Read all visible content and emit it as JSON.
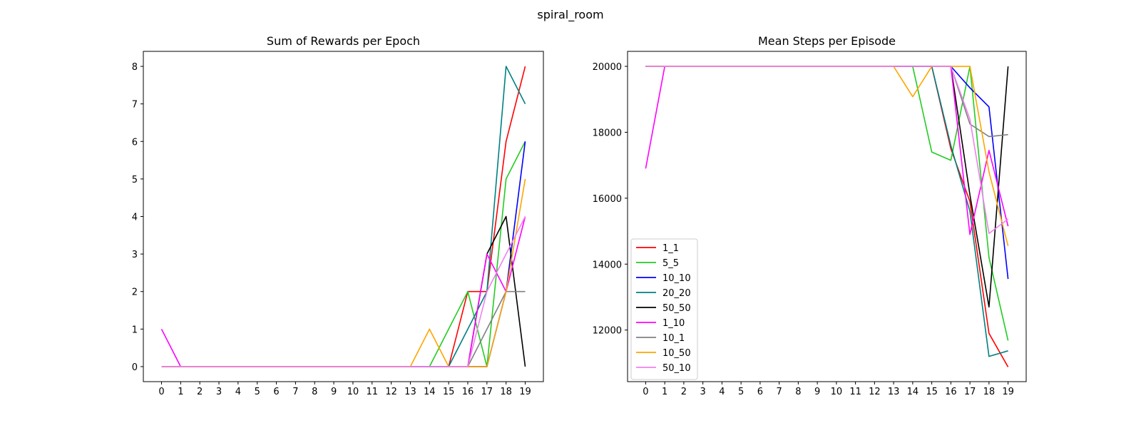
{
  "figure": {
    "suptitle": "spiral_room"
  },
  "chart_data": [
    {
      "type": "line",
      "title": "Sum of Rewards per Epoch",
      "xlabel": "",
      "ylabel": "",
      "x": [
        0,
        1,
        2,
        3,
        4,
        5,
        6,
        7,
        8,
        9,
        10,
        11,
        12,
        13,
        14,
        15,
        16,
        17,
        18,
        19
      ],
      "xticks": [
        "0",
        "1",
        "2",
        "3",
        "4",
        "5",
        "6",
        "7",
        "8",
        "9",
        "10",
        "11",
        "12",
        "13",
        "14",
        "15",
        "16",
        "17",
        "18",
        "19"
      ],
      "yticks": [
        0,
        1,
        2,
        3,
        4,
        5,
        6,
        7,
        8
      ],
      "xlim": [
        -0.95,
        19.95
      ],
      "ylim": [
        -0.4,
        8.4
      ],
      "grid": false,
      "legend": false,
      "series": [
        {
          "name": "1_1",
          "color": "#ff0000",
          "values": [
            0,
            0,
            0,
            0,
            0,
            0,
            0,
            0,
            0,
            0,
            0,
            0,
            0,
            0,
            0,
            0,
            2,
            2,
            6,
            8
          ]
        },
        {
          "name": "5_5",
          "color": "#22cc22",
          "values": [
            0,
            0,
            0,
            0,
            0,
            0,
            0,
            0,
            0,
            0,
            0,
            0,
            0,
            0,
            0,
            1,
            2,
            0,
            5,
            6
          ]
        },
        {
          "name": "10_10",
          "color": "#0000ff",
          "values": [
            0,
            0,
            0,
            0,
            0,
            0,
            0,
            0,
            0,
            0,
            0,
            0,
            0,
            0,
            0,
            0,
            0,
            0,
            2,
            6
          ]
        },
        {
          "name": "20_20",
          "color": "#008080",
          "values": [
            0,
            0,
            0,
            0,
            0,
            0,
            0,
            0,
            0,
            0,
            0,
            0,
            0,
            0,
            0,
            0,
            1,
            2,
            8,
            7
          ]
        },
        {
          "name": "50_50",
          "color": "#000000",
          "values": [
            0,
            0,
            0,
            0,
            0,
            0,
            0,
            0,
            0,
            0,
            0,
            0,
            0,
            0,
            0,
            0,
            0,
            3,
            4,
            0
          ]
        },
        {
          "name": "1_10",
          "color": "#ff00ff",
          "values": [
            1,
            0,
            0,
            0,
            0,
            0,
            0,
            0,
            0,
            0,
            0,
            0,
            0,
            0,
            0,
            0,
            0,
            3,
            2,
            4
          ]
        },
        {
          "name": "10_1",
          "color": "#808080",
          "values": [
            0,
            0,
            0,
            0,
            0,
            0,
            0,
            0,
            0,
            0,
            0,
            0,
            0,
            0,
            0,
            0,
            0,
            1,
            2,
            2
          ]
        },
        {
          "name": "10_50",
          "color": "#ffa500",
          "values": [
            0,
            0,
            0,
            0,
            0,
            0,
            0,
            0,
            0,
            0,
            0,
            0,
            0,
            0,
            1,
            0,
            0,
            0,
            2,
            5
          ]
        },
        {
          "name": "50_10",
          "color": "#ee82ee",
          "values": [
            0,
            0,
            0,
            0,
            0,
            0,
            0,
            0,
            0,
            0,
            0,
            0,
            0,
            0,
            0,
            0,
            0,
            2,
            3,
            4
          ]
        }
      ]
    },
    {
      "type": "line",
      "title": "Mean Steps per Episode",
      "xlabel": "",
      "ylabel": "",
      "x": [
        0,
        1,
        2,
        3,
        4,
        5,
        6,
        7,
        8,
        9,
        10,
        11,
        12,
        13,
        14,
        15,
        16,
        17,
        18,
        19
      ],
      "xticks": [
        "0",
        "1",
        "2",
        "3",
        "4",
        "5",
        "6",
        "7",
        "8",
        "9",
        "10",
        "11",
        "12",
        "13",
        "14",
        "15",
        "16",
        "17",
        "18",
        "19"
      ],
      "yticks": [
        12000,
        14000,
        16000,
        18000,
        20000
      ],
      "xlim": [
        -0.95,
        19.95
      ],
      "ylim": [
        10435,
        20455
      ],
      "grid": false,
      "legend": true,
      "legend_position": "lower-left",
      "series": [
        {
          "name": "1_1",
          "color": "#ff0000",
          "values": [
            20000,
            20000,
            20000,
            20000,
            20000,
            20000,
            20000,
            20000,
            20000,
            20000,
            20000,
            20000,
            20000,
            20000,
            20000,
            20000,
            17500,
            15900,
            11900,
            10880
          ]
        },
        {
          "name": "5_5",
          "color": "#22cc22",
          "values": [
            20000,
            20000,
            20000,
            20000,
            20000,
            20000,
            20000,
            20000,
            20000,
            20000,
            20000,
            20000,
            20000,
            20000,
            20000,
            17400,
            17150,
            20000,
            14200,
            11680
          ]
        },
        {
          "name": "10_10",
          "color": "#0000ff",
          "values": [
            20000,
            20000,
            20000,
            20000,
            20000,
            20000,
            20000,
            20000,
            20000,
            20000,
            20000,
            20000,
            20000,
            20000,
            20000,
            20000,
            20000,
            19350,
            18770,
            13550
          ]
        },
        {
          "name": "20_20",
          "color": "#008080",
          "values": [
            20000,
            20000,
            20000,
            20000,
            20000,
            20000,
            20000,
            20000,
            20000,
            20000,
            20000,
            20000,
            20000,
            20000,
            20000,
            20000,
            17600,
            15600,
            11200,
            11370
          ]
        },
        {
          "name": "50_50",
          "color": "#000000",
          "values": [
            20000,
            20000,
            20000,
            20000,
            20000,
            20000,
            20000,
            20000,
            20000,
            20000,
            20000,
            20000,
            20000,
            20000,
            20000,
            20000,
            20000,
            16100,
            12700,
            20000
          ]
        },
        {
          "name": "1_10",
          "color": "#ff00ff",
          "values": [
            16900,
            20000,
            20000,
            20000,
            20000,
            20000,
            20000,
            20000,
            20000,
            20000,
            20000,
            20000,
            20000,
            20000,
            20000,
            20000,
            20000,
            14900,
            17450,
            15150
          ]
        },
        {
          "name": "10_1",
          "color": "#808080",
          "values": [
            20000,
            20000,
            20000,
            20000,
            20000,
            20000,
            20000,
            20000,
            20000,
            20000,
            20000,
            20000,
            20000,
            20000,
            20000,
            20000,
            20000,
            18250,
            17870,
            17930
          ]
        },
        {
          "name": "10_50",
          "color": "#ffa500",
          "values": [
            20000,
            20000,
            20000,
            20000,
            20000,
            20000,
            20000,
            20000,
            20000,
            20000,
            20000,
            20000,
            20000,
            20000,
            19080,
            20000,
            20000,
            20000,
            16800,
            14550
          ]
        },
        {
          "name": "50_10",
          "color": "#ee82ee",
          "values": [
            20000,
            20000,
            20000,
            20000,
            20000,
            20000,
            20000,
            20000,
            20000,
            20000,
            20000,
            20000,
            20000,
            20000,
            20000,
            20000,
            20000,
            18400,
            14930,
            15370
          ]
        }
      ]
    }
  ]
}
